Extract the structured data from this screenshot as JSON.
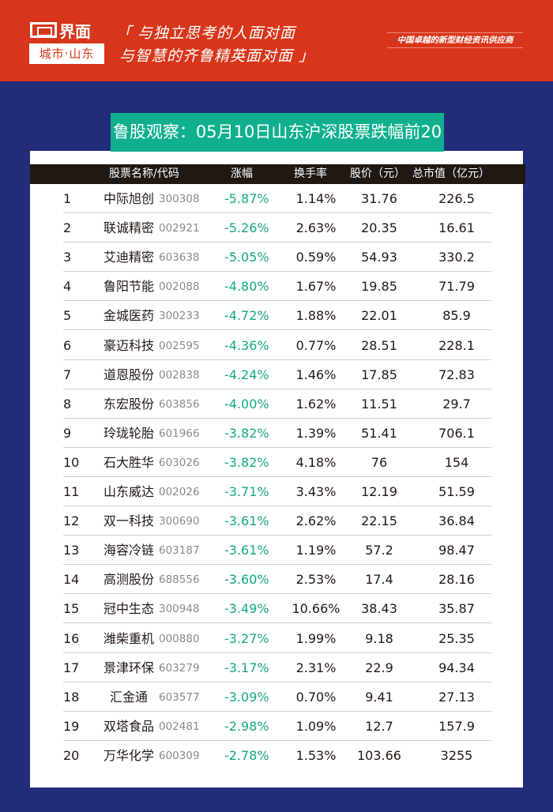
{
  "header": {
    "logo_text": "界面",
    "logo_sub": "城市·山东",
    "slogan_line1": "「 与独立思考的人面对面",
    "slogan_line2": "与智慧的齐鲁精英面对面 」",
    "tagline": "中国卓越的新型财经资讯供应商",
    "colors": {
      "header_bg": "#d8361b",
      "page_bg": "#232c78",
      "title_bg": "#10b08e",
      "table_header_bg": "#1f1813",
      "decline_color": "#13a884"
    }
  },
  "title": "鲁股观察：05月10日山东沪深股票跌幅前20",
  "table": {
    "columns": [
      "股票名称/代码",
      "涨幅",
      "换手率",
      "股价（元）",
      "总市值（亿元）"
    ],
    "rows": [
      {
        "rank": "1",
        "name": "中际旭创",
        "code": "300308",
        "change": "-5.87%",
        "turnover": "1.14%",
        "price": "31.76",
        "market_cap": "226.5"
      },
      {
        "rank": "2",
        "name": "联诚精密",
        "code": "002921",
        "change": "-5.26%",
        "turnover": "2.63%",
        "price": "20.35",
        "market_cap": "16.61"
      },
      {
        "rank": "3",
        "name": "艾迪精密",
        "code": "603638",
        "change": "-5.05%",
        "turnover": "0.59%",
        "price": "54.93",
        "market_cap": "330.2"
      },
      {
        "rank": "4",
        "name": "鲁阳节能",
        "code": "002088",
        "change": "-4.80%",
        "turnover": "1.67%",
        "price": "19.85",
        "market_cap": "71.79"
      },
      {
        "rank": "5",
        "name": "金城医药",
        "code": "300233",
        "change": "-4.72%",
        "turnover": "1.88%",
        "price": "22.01",
        "market_cap": "85.9"
      },
      {
        "rank": "6",
        "name": "豪迈科技",
        "code": "002595",
        "change": "-4.36%",
        "turnover": "0.77%",
        "price": "28.51",
        "market_cap": "228.1"
      },
      {
        "rank": "7",
        "name": "道恩股份",
        "code": "002838",
        "change": "-4.24%",
        "turnover": "1.46%",
        "price": "17.85",
        "market_cap": "72.83"
      },
      {
        "rank": "8",
        "name": "东宏股份",
        "code": "603856",
        "change": "-4.00%",
        "turnover": "1.62%",
        "price": "11.51",
        "market_cap": "29.7"
      },
      {
        "rank": "9",
        "name": "玲珑轮胎",
        "code": "601966",
        "change": "-3.82%",
        "turnover": "1.39%",
        "price": "51.41",
        "market_cap": "706.1"
      },
      {
        "rank": "10",
        "name": "石大胜华",
        "code": "603026",
        "change": "-3.82%",
        "turnover": "4.18%",
        "price": "76",
        "market_cap": "154"
      },
      {
        "rank": "11",
        "name": "山东威达",
        "code": "002026",
        "change": "-3.71%",
        "turnover": "3.43%",
        "price": "12.19",
        "market_cap": "51.59"
      },
      {
        "rank": "12",
        "name": "双一科技",
        "code": "300690",
        "change": "-3.61%",
        "turnover": "2.62%",
        "price": "22.15",
        "market_cap": "36.84"
      },
      {
        "rank": "13",
        "name": "海容冷链",
        "code": "603187",
        "change": "-3.61%",
        "turnover": "1.19%",
        "price": "57.2",
        "market_cap": "98.47"
      },
      {
        "rank": "14",
        "name": "高测股份",
        "code": "688556",
        "change": "-3.60%",
        "turnover": "2.53%",
        "price": "17.4",
        "market_cap": "28.16"
      },
      {
        "rank": "15",
        "name": "冠中生态",
        "code": "300948",
        "change": "-3.49%",
        "turnover": "10.66%",
        "price": "38.43",
        "market_cap": "35.87"
      },
      {
        "rank": "16",
        "name": "潍柴重机",
        "code": "000880",
        "change": "-3.27%",
        "turnover": "1.99%",
        "price": "9.18",
        "market_cap": "25.35"
      },
      {
        "rank": "17",
        "name": "景津环保",
        "code": "603279",
        "change": "-3.17%",
        "turnover": "2.31%",
        "price": "22.9",
        "market_cap": "94.34"
      },
      {
        "rank": "18",
        "name": "汇金通",
        "code": "603577",
        "change": "-3.09%",
        "turnover": "0.70%",
        "price": "9.41",
        "market_cap": "27.13"
      },
      {
        "rank": "19",
        "name": "双塔食品",
        "code": "002481",
        "change": "-2.98%",
        "turnover": "1.09%",
        "price": "12.7",
        "market_cap": "157.9"
      },
      {
        "rank": "20",
        "name": "万华化学",
        "code": "600309",
        "change": "-2.78%",
        "turnover": "1.53%",
        "price": "103.66",
        "market_cap": "3255"
      }
    ]
  }
}
